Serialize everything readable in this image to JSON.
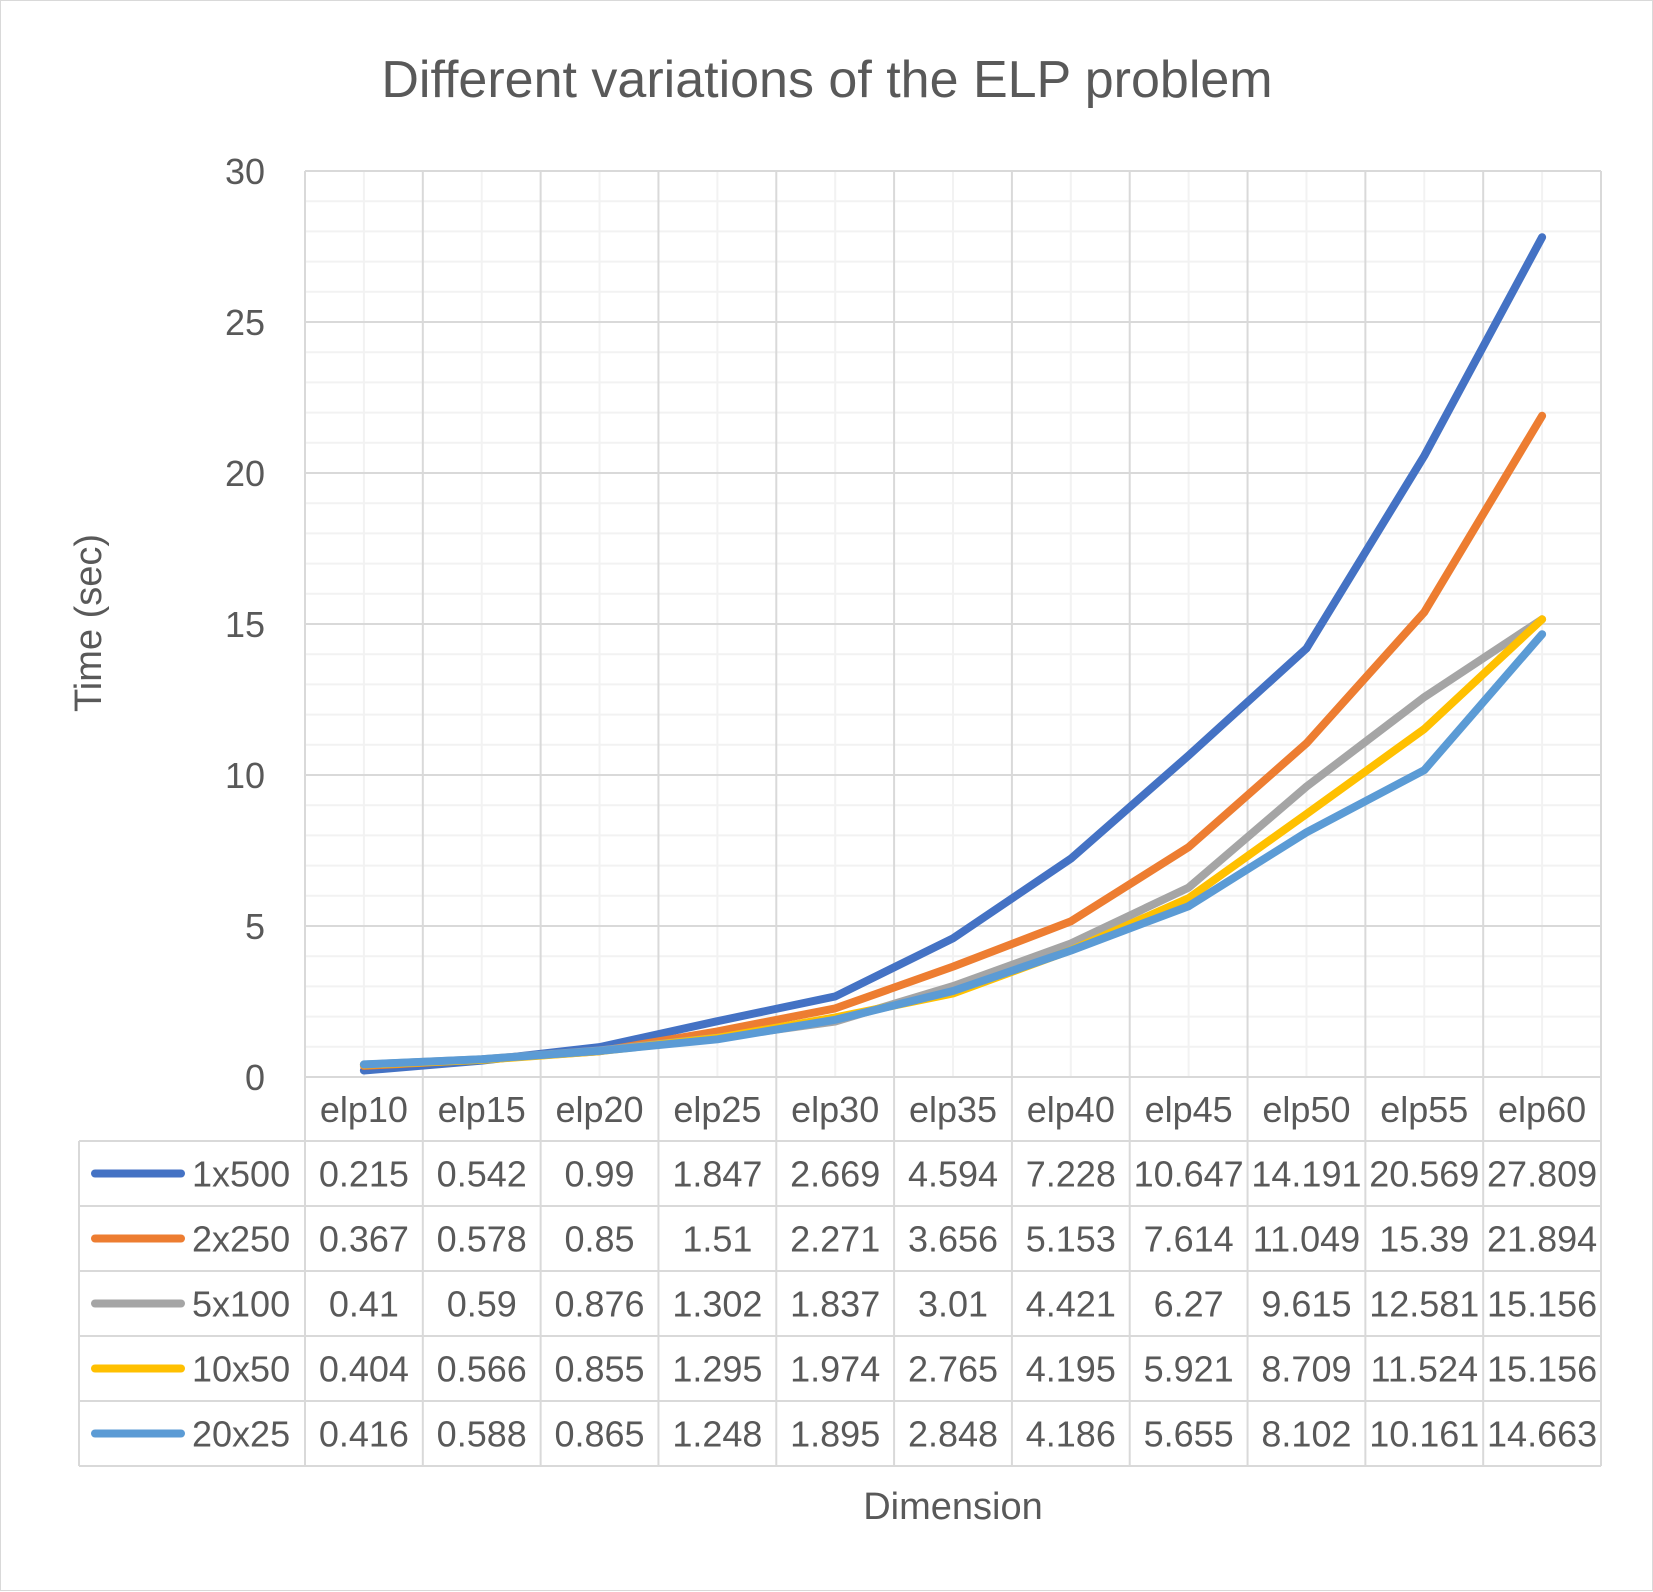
{
  "chart_data": {
    "type": "line",
    "title": "Different variations of the ELP problem",
    "xlabel": "Dimension",
    "ylabel": "Time (sec)",
    "ylim": [
      0,
      30
    ],
    "yticks": [
      0,
      5,
      10,
      15,
      20,
      25,
      30
    ],
    "grid": true,
    "legend": "data-table",
    "categories": [
      "elp10",
      "elp15",
      "elp20",
      "elp25",
      "elp30",
      "elp35",
      "elp40",
      "elp45",
      "elp50",
      "elp55",
      "elp60"
    ],
    "series": [
      {
        "name": "1x500",
        "color": "#4472c4",
        "values": [
          0.215,
          0.542,
          0.99,
          1.847,
          2.669,
          4.594,
          7.228,
          10.647,
          14.191,
          20.569,
          27.809
        ],
        "labels": [
          "0.215",
          "0.542",
          "0.99",
          "1.847",
          "2.669",
          "4.594",
          "7.228",
          "10.647",
          "14.191",
          "20.569",
          "27.809"
        ]
      },
      {
        "name": "2x250",
        "color": "#ed7d31",
        "values": [
          0.367,
          0.578,
          0.85,
          1.51,
          2.271,
          3.656,
          5.153,
          7.614,
          11.049,
          15.39,
          21.894
        ],
        "labels": [
          "0.367",
          "0.578",
          "0.85",
          "1.51",
          "2.271",
          "3.656",
          "5.153",
          "7.614",
          "11.049",
          "15.39",
          "21.894"
        ]
      },
      {
        "name": "5x100",
        "color": "#a5a5a5",
        "values": [
          0.41,
          0.59,
          0.876,
          1.302,
          1.837,
          3.01,
          4.421,
          6.27,
          9.615,
          12.581,
          15.156
        ],
        "labels": [
          "0.41",
          "0.59",
          "0.876",
          "1.302",
          "1.837",
          "3.01",
          "4.421",
          "6.27",
          "9.615",
          "12.581",
          "15.156"
        ]
      },
      {
        "name": "10x50",
        "color": "#ffc000",
        "values": [
          0.404,
          0.566,
          0.855,
          1.295,
          1.974,
          2.765,
          4.195,
          5.921,
          8.709,
          11.524,
          15.156
        ],
        "labels": [
          "0.404",
          "0.566",
          "0.855",
          "1.295",
          "1.974",
          "2.765",
          "4.195",
          "5.921",
          "8.709",
          "11.524",
          "15.156"
        ]
      },
      {
        "name": "20x25",
        "color": "#5b9bd5",
        "values": [
          0.416,
          0.588,
          0.865,
          1.248,
          1.895,
          2.848,
          4.186,
          5.655,
          8.102,
          10.161,
          14.663
        ],
        "labels": [
          "0.416",
          "0.588",
          "0.865",
          "1.248",
          "1.895",
          "2.848",
          "4.186",
          "5.655",
          "8.102",
          "10.161",
          "14.663"
        ]
      }
    ]
  }
}
